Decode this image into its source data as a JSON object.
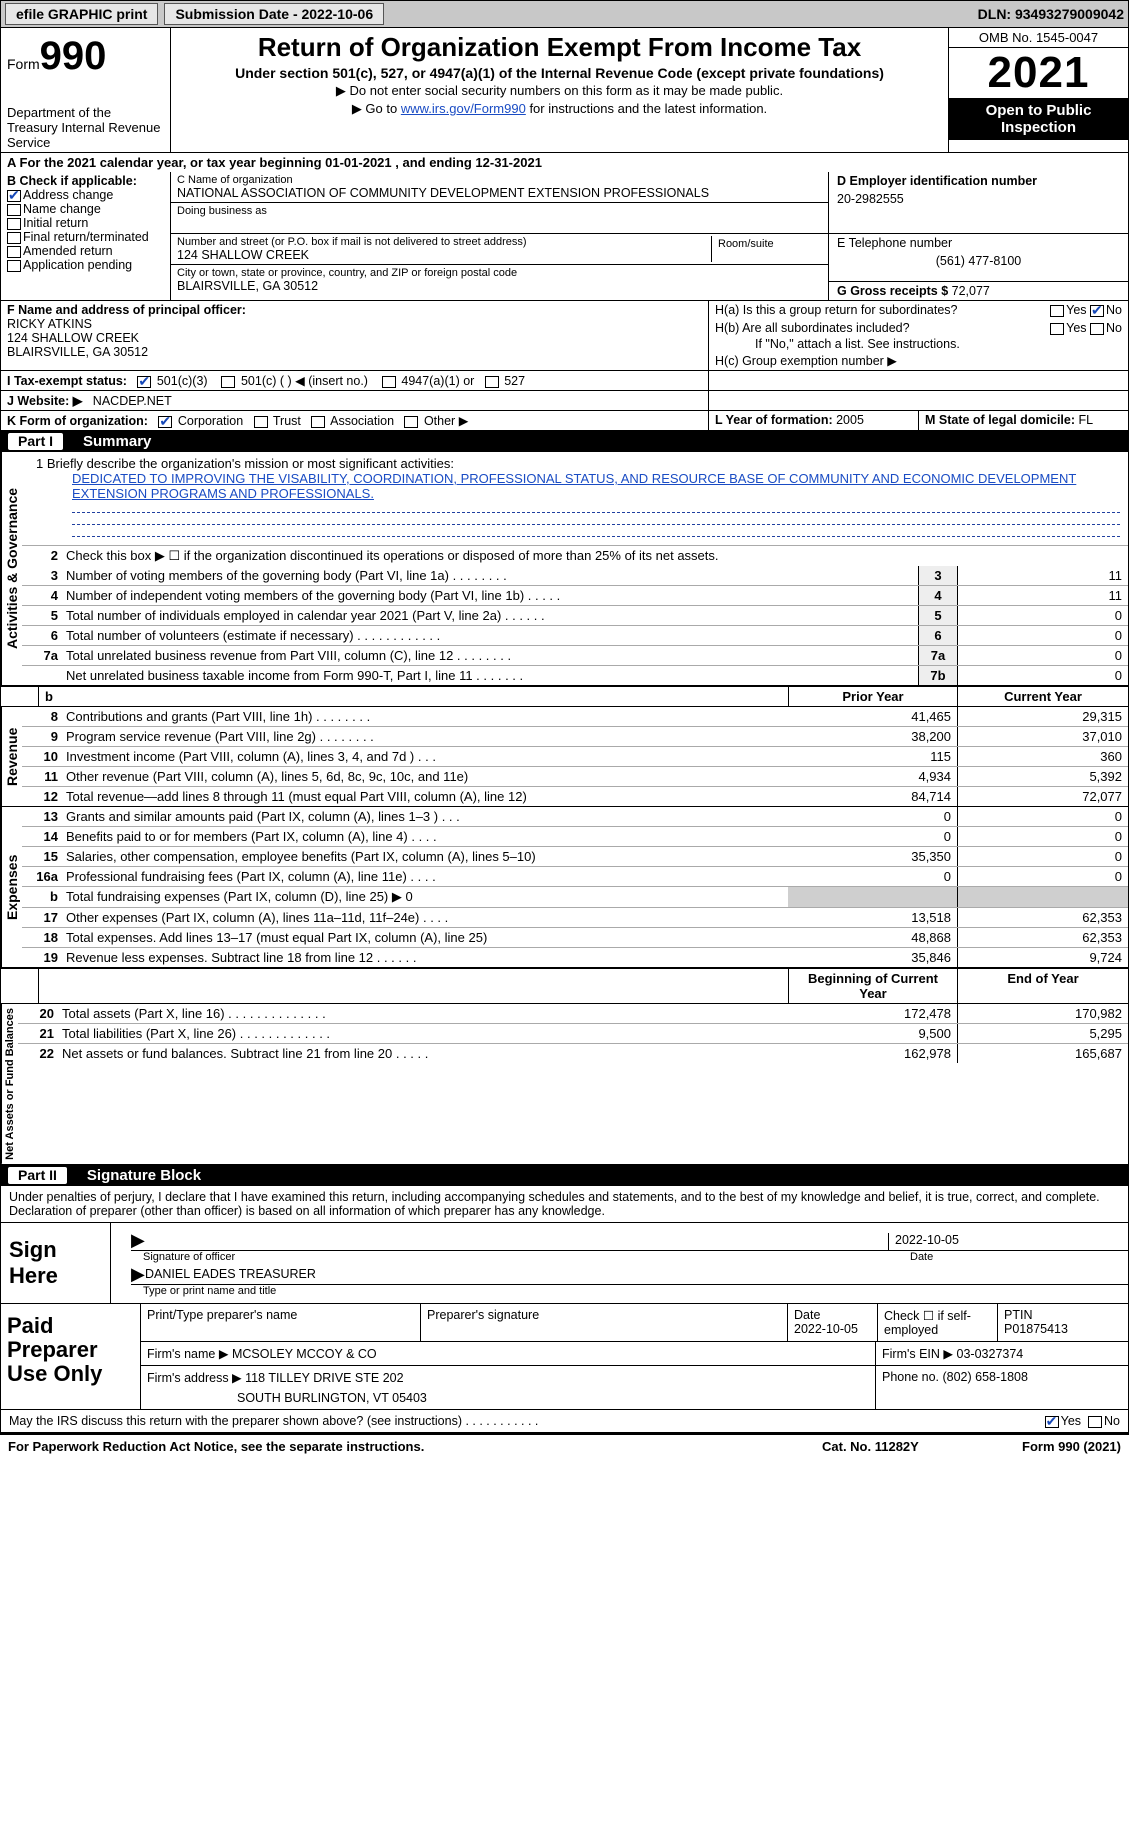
{
  "colors": {
    "accent": "#1648b8",
    "header_bg": "#c8c8c8",
    "black": "#000000",
    "white": "#ffffff"
  },
  "topbar": {
    "efile": "efile GRAPHIC print",
    "submission_label": "Submission Date - 2022-10-06",
    "dln_label": "DLN: 93493279009042"
  },
  "header": {
    "form_prefix": "Form",
    "form_number": "990",
    "title": "Return of Organization Exempt From Income Tax",
    "subtitle": "Under section 501(c), 527, or 4947(a)(1) of the Internal Revenue Code (except private foundations)",
    "note1": "▶ Do not enter social security numbers on this form as it may be made public.",
    "note2_pre": "▶ Go to ",
    "note2_link": "www.irs.gov/Form990",
    "note2_post": " for instructions and the latest information.",
    "dept": "Department of the Treasury\nInternal Revenue Service",
    "omb": "OMB No. 1545-0047",
    "year": "2021",
    "open": "Open to Public Inspection"
  },
  "A": {
    "text_pre": "A For the 2021 calendar year, or tax year beginning ",
    "begin": "01-01-2021",
    "mid": " , and ending ",
    "end": "12-31-2021"
  },
  "B": {
    "label": "B Check if applicable:",
    "items": [
      "Address change",
      "Name change",
      "Initial return",
      "Final return/terminated",
      "Amended return",
      "Application pending"
    ],
    "checked_index": 0
  },
  "C": {
    "name_label": "C Name of organization",
    "name": "NATIONAL ASSOCIATION OF COMMUNITY DEVELOPMENT EXTENSION PROFESSIONALS",
    "dba_label": "Doing business as",
    "street_label": "Number and street (or P.O. box if mail is not delivered to street address)",
    "room_label": "Room/suite",
    "street": "124 SHALLOW CREEK",
    "city_label": "City or town, state or province, country, and ZIP or foreign postal code",
    "city": "BLAIRSVILLE, GA  30512"
  },
  "D": {
    "label": "D Employer identification number",
    "value": "20-2982555"
  },
  "E": {
    "label": "E Telephone number",
    "value": "(561) 477-8100"
  },
  "G": {
    "label": "G Gross receipts $",
    "value": "72,077"
  },
  "F": {
    "label": "F Name and address of principal officer:",
    "name": "RICKY ATKINS",
    "addr1": "124 SHALLOW CREEK",
    "addr2": "BLAIRSVILLE, GA  30512"
  },
  "H": {
    "a": "H(a)  Is this a group return for subordinates?",
    "a_yes": "Yes",
    "a_no": "No",
    "b": "H(b)  Are all subordinates included?",
    "b_note": "If \"No,\" attach a list. See instructions.",
    "c": "H(c)  Group exemption number ▶"
  },
  "I": {
    "label": "I  Tax-exempt status:",
    "opts": [
      "501(c)(3)",
      "501(c) (  ) ◀ (insert no.)",
      "4947(a)(1) or",
      "527"
    ]
  },
  "J": {
    "label": "J  Website: ▶",
    "value": "NACDEP.NET"
  },
  "K": {
    "label": "K Form of organization:",
    "opts": [
      "Corporation",
      "Trust",
      "Association",
      "Other ▶"
    ]
  },
  "L": {
    "label": "L Year of formation:",
    "value": "2005"
  },
  "M": {
    "label": "M State of legal domicile:",
    "value": "FL"
  },
  "part1": {
    "tag": "Part I",
    "title": "Summary"
  },
  "mission": {
    "label": "1   Briefly describe the organization's mission or most significant activities:",
    "text": "DEDICATED TO IMPROVING THE VISABILITY, COORDINATION, PROFESSIONAL STATUS, AND RESOURCE BASE OF COMMUNITY AND ECONOMIC DEVELOPMENT EXTENSION PROGRAMS AND PROFESSIONALS."
  },
  "line2": "Check this box ▶ ☐ if the organization discontinued its operations or disposed of more than 25% of its net assets.",
  "gov": {
    "label": "Activities & Governance",
    "rows": [
      {
        "n": "3",
        "t": "Number of voting members of the governing body (Part VI, line 1a)  .   .   .   .   .   .   .   .",
        "b": "3",
        "v": "11"
      },
      {
        "n": "4",
        "t": "Number of independent voting members of the governing body (Part VI, line 1b)  .   .   .   .   .",
        "b": "4",
        "v": "11"
      },
      {
        "n": "5",
        "t": "Total number of individuals employed in calendar year 2021 (Part V, line 2a)  .   .   .   .   .   .",
        "b": "5",
        "v": "0"
      },
      {
        "n": "6",
        "t": "Total number of volunteers (estimate if necessary)   .   .   .   .   .   .   .   .   .   .   .   .",
        "b": "6",
        "v": "0"
      },
      {
        "n": "7a",
        "t": "Total unrelated business revenue from Part VIII, column (C), line 12  .   .   .   .   .   .   .   .",
        "b": "7a",
        "v": "0"
      },
      {
        "n": "",
        "t": "Net unrelated business taxable income from Form 990-T, Part I, line 11  .   .   .   .   .   .   .",
        "b": "7b",
        "v": "0"
      }
    ]
  },
  "colhdr": {
    "prior": "Prior Year",
    "current": "Current Year",
    "bcy": "Beginning of Current Year",
    "eoy": "End of Year"
  },
  "rev": {
    "label": "Revenue",
    "rows": [
      {
        "n": "8",
        "t": "Contributions and grants (Part VIII, line 1h)   .   .   .   .   .   .   .   .",
        "p": "41,465",
        "c": "29,315"
      },
      {
        "n": "9",
        "t": "Program service revenue (Part VIII, line 2g)   .   .   .   .   .   .   .   .",
        "p": "38,200",
        "c": "37,010"
      },
      {
        "n": "10",
        "t": "Investment income (Part VIII, column (A), lines 3, 4, and 7d )   .   .   .",
        "p": "115",
        "c": "360"
      },
      {
        "n": "11",
        "t": "Other revenue (Part VIII, column (A), lines 5, 6d, 8c, 9c, 10c, and 11e)",
        "p": "4,934",
        "c": "5,392"
      },
      {
        "n": "12",
        "t": "Total revenue—add lines 8 through 11 (must equal Part VIII, column (A), line 12)",
        "p": "84,714",
        "c": "72,077"
      }
    ]
  },
  "exp": {
    "label": "Expenses",
    "rows": [
      {
        "n": "13",
        "t": "Grants and similar amounts paid (Part IX, column (A), lines 1–3 )  .   .   .",
        "p": "0",
        "c": "0"
      },
      {
        "n": "14",
        "t": "Benefits paid to or for members (Part IX, column (A), line 4)  .   .   .   .",
        "p": "0",
        "c": "0"
      },
      {
        "n": "15",
        "t": "Salaries, other compensation, employee benefits (Part IX, column (A), lines 5–10)",
        "p": "35,350",
        "c": "0"
      },
      {
        "n": "16a",
        "t": "Professional fundraising fees (Part IX, column (A), line 11e)  .   .   .   .",
        "p": "0",
        "c": "0"
      },
      {
        "n": "b",
        "t": "Total fundraising expenses (Part IX, column (D), line 25) ▶ 0",
        "p": "",
        "c": "",
        "gray": true
      },
      {
        "n": "17",
        "t": "Other expenses (Part IX, column (A), lines 11a–11d, 11f–24e)  .   .   .   .",
        "p": "13,518",
        "c": "62,353"
      },
      {
        "n": "18",
        "t": "Total expenses. Add lines 13–17 (must equal Part IX, column (A), line 25)",
        "p": "48,868",
        "c": "62,353"
      },
      {
        "n": "19",
        "t": "Revenue less expenses. Subtract line 18 from line 12  .   .   .   .   .   .",
        "p": "35,846",
        "c": "9,724"
      }
    ]
  },
  "net": {
    "label": "Net Assets or Fund Balances",
    "rows": [
      {
        "n": "20",
        "t": "Total assets (Part X, line 16)  .   .   .   .   .   .   .   .   .   .   .   .   .   .",
        "p": "172,478",
        "c": "170,982"
      },
      {
        "n": "21",
        "t": "Total liabilities (Part X, line 26)  .   .   .   .   .   .   .   .   .   .   .   .   .",
        "p": "9,500",
        "c": "5,295"
      },
      {
        "n": "22",
        "t": "Net assets or fund balances. Subtract line 21 from line 20  .   .   .   .   .",
        "p": "162,978",
        "c": "165,687"
      }
    ]
  },
  "part2": {
    "tag": "Part II",
    "title": "Signature Block"
  },
  "declare": "Under penalties of perjury, I declare that I have examined this return, including accompanying schedules and statements, and to the best of my knowledge and belief, it is true, correct, and complete. Declaration of preparer (other than officer) is based on all information of which preparer has any knowledge.",
  "sign": {
    "label": "Sign Here",
    "sig_of_officer": "Signature of officer",
    "date": "2022-10-05",
    "date_label": "Date",
    "printed": "DANIEL EADES  TREASURER",
    "printed_label": "Type or print name and title"
  },
  "prep": {
    "label": "Paid Preparer Use Only",
    "h": [
      "Print/Type preparer's name",
      "Preparer's signature",
      "Date",
      "Check ☐ if self-employed",
      "PTIN"
    ],
    "date": "2022-10-05",
    "ptin": "P01875413",
    "firm_name_label": "Firm's name   ▶",
    "firm_name": "MCSOLEY MCCOY & CO",
    "firm_ein_label": "Firm's EIN ▶",
    "firm_ein": "03-0327374",
    "firm_addr_label": "Firm's address ▶",
    "firm_addr1": "118 TILLEY DRIVE STE 202",
    "firm_addr2": "SOUTH BURLINGTON, VT  05403",
    "phone_label": "Phone no.",
    "phone": "(802) 658-1808"
  },
  "discuss": {
    "text": "May the IRS discuss this return with the preparer shown above? (see instructions)   .   .   .   .   .   .   .   .   .   .   .",
    "yes": "Yes",
    "no": "No"
  },
  "footer": {
    "pra": "For Paperwork Reduction Act Notice, see the separate instructions.",
    "cat": "Cat. No. 11282Y",
    "form": "Form 990 (2021)"
  }
}
